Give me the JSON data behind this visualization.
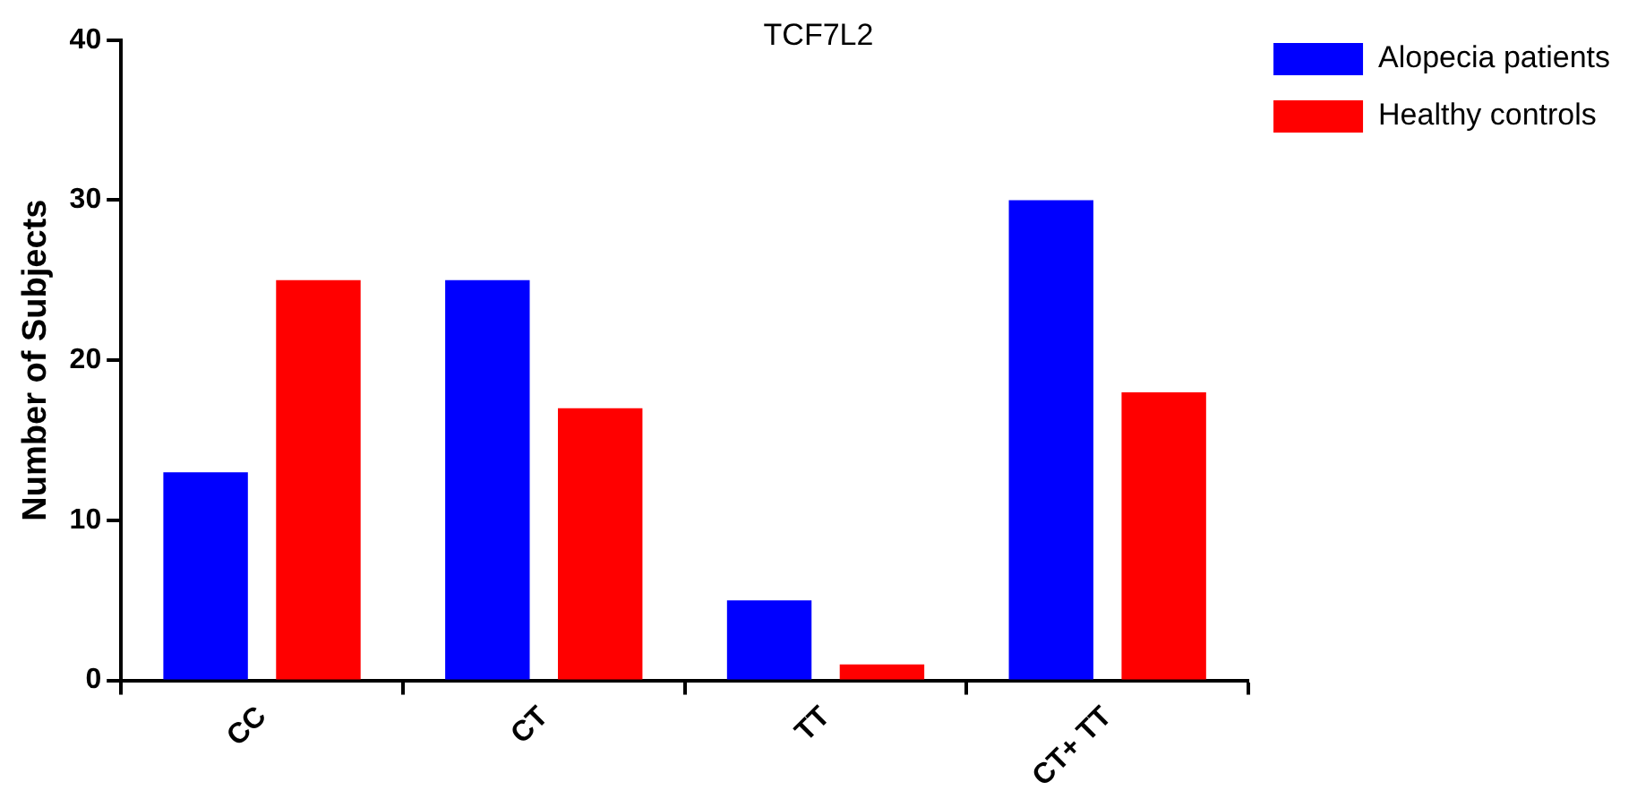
{
  "chart_data": {
    "type": "bar",
    "title": "TCF7L2",
    "ylabel": "Number of Subjects",
    "categories": [
      "CC",
      "CT",
      "TT",
      "CT+ TT"
    ],
    "series": [
      {
        "name": "Alopecia patients",
        "color": "#0000ff",
        "values": [
          13,
          25,
          5,
          30
        ]
      },
      {
        "name": "Healthy controls",
        "color": "#ff0000",
        "values": [
          25,
          17,
          1,
          18
        ]
      }
    ],
    "ylim": [
      0,
      40
    ],
    "yticks": [
      0,
      10,
      20,
      30,
      40
    ],
    "grid": false,
    "legend": "top right"
  }
}
